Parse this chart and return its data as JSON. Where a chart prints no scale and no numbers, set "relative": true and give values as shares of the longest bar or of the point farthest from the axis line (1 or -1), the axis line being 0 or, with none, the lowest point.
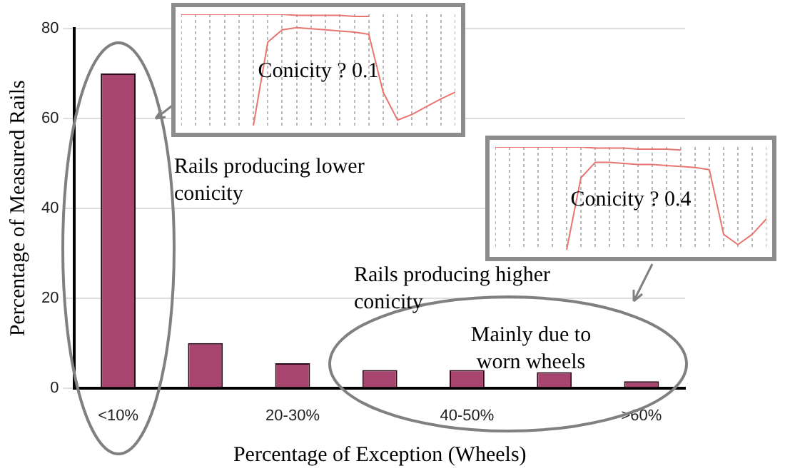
{
  "chart_data": [
    {
      "type": "bar",
      "xlabel": "Percentage of Exception (Wheels)",
      "ylabel": "Percentage of Measured Rails",
      "categories": [
        "<10%",
        null,
        "20-30%",
        null,
        "40-50%",
        null,
        ">60%"
      ],
      "values": [
        70,
        10,
        5.5,
        4,
        4,
        3.5,
        1.5
      ],
      "color": "#a8456f",
      "ylim": [
        0,
        80
      ],
      "yticks": [
        0,
        20,
        40,
        60,
        80
      ],
      "grid": "y",
      "legend": false,
      "annotations": [
        "Rails producing lower conicity",
        "Rails producing higher conicity",
        "Mainly due to worn wheels"
      ]
    },
    {
      "type": "line",
      "relative": true,
      "grid": "x",
      "legend": false,
      "categories": [
        null,
        null,
        null,
        null,
        null,
        null,
        null,
        null,
        null,
        null,
        null,
        null,
        null,
        null,
        null,
        null,
        null,
        null,
        null,
        null
      ],
      "series": [
        {
          "color": "#e8756f",
          "values": [
            1.0,
            1.0,
            1.0,
            1.0,
            1.0,
            1.0,
            1.0,
            1.0,
            0.99,
            0.99,
            0.99,
            0.99,
            0.98,
            0.98,
            null,
            null,
            null,
            null,
            null,
            null
          ]
        },
        {
          "color": "#e8756f",
          "values": [
            null,
            null,
            null,
            null,
            null,
            0.0,
            0.75,
            0.86,
            0.88,
            0.87,
            0.86,
            0.85,
            0.84,
            0.82,
            0.3,
            0.05,
            0.1,
            0.17,
            0.24,
            0.3
          ]
        }
      ],
      "annotations": [
        "Conicity ? 0.1"
      ]
    },
    {
      "type": "line",
      "relative": true,
      "grid": "x",
      "legend": false,
      "categories": [
        null,
        null,
        null,
        null,
        null,
        null,
        null,
        null,
        null,
        null,
        null,
        null,
        null,
        null,
        null,
        null,
        null,
        null,
        null,
        null
      ],
      "series": [
        {
          "color": "#e8756f",
          "values": [
            1.0,
            1.0,
            1.0,
            1.0,
            1.0,
            1.0,
            1.0,
            0.99,
            0.99,
            0.99,
            0.98,
            0.98,
            0.98,
            0.97,
            null,
            null,
            null,
            null,
            null,
            null
          ]
        },
        {
          "color": "#e8756f",
          "values": [
            null,
            null,
            null,
            null,
            null,
            0.0,
            0.7,
            0.85,
            0.85,
            0.84,
            0.83,
            0.83,
            0.82,
            0.81,
            0.8,
            0.78,
            0.15,
            0.05,
            0.15,
            0.3
          ]
        }
      ],
      "annotations": [
        "Conicity ? 0.4"
      ]
    }
  ]
}
